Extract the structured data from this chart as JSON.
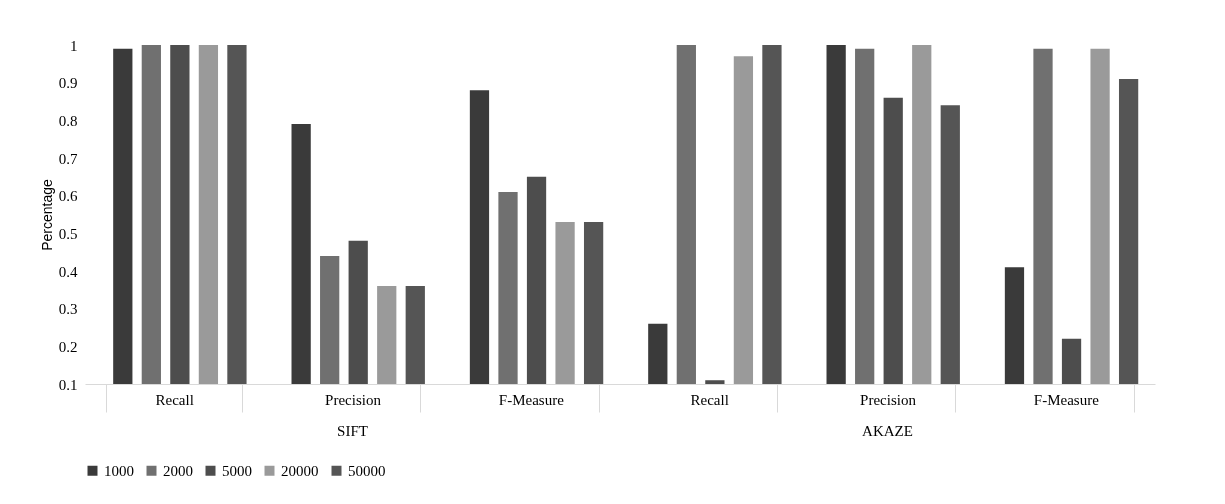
{
  "chart_data": {
    "type": "bar",
    "ylabel": "Percentage",
    "categories": [
      "Recall",
      "Precision",
      "F-Measure",
      "Recall",
      "Precision",
      "F-Measure"
    ],
    "annotations": [
      "SIFT",
      "AKAZE"
    ],
    "series": [
      {
        "name": "1000",
        "color": "#3a3a3a",
        "values": [
          0.99,
          0.79,
          0.88,
          0.26,
          1,
          0.41
        ]
      },
      {
        "name": "2000",
        "color": "#707070",
        "values": [
          1,
          0.44,
          0.61,
          1,
          0.99,
          0.99
        ]
      },
      {
        "name": "5000",
        "color": "#4d4d4d",
        "values": [
          1,
          0.48,
          0.65,
          0.11,
          0.86,
          0.22
        ]
      },
      {
        "name": "20000",
        "color": "#9a9a9a",
        "values": [
          1,
          0.36,
          0.53,
          0.97,
          1,
          0.99
        ]
      },
      {
        "name": "50000",
        "color": "#555555",
        "values": [
          1,
          0.36,
          0.53,
          1,
          0.84,
          0.91
        ]
      }
    ],
    "ylim": [
      0.1,
      1
    ],
    "yticks": [
      0.1,
      0.2,
      0.3,
      0.4,
      0.5,
      0.6,
      0.7,
      0.8,
      0.9,
      1
    ],
    "grid": false,
    "legend": "bottom"
  }
}
